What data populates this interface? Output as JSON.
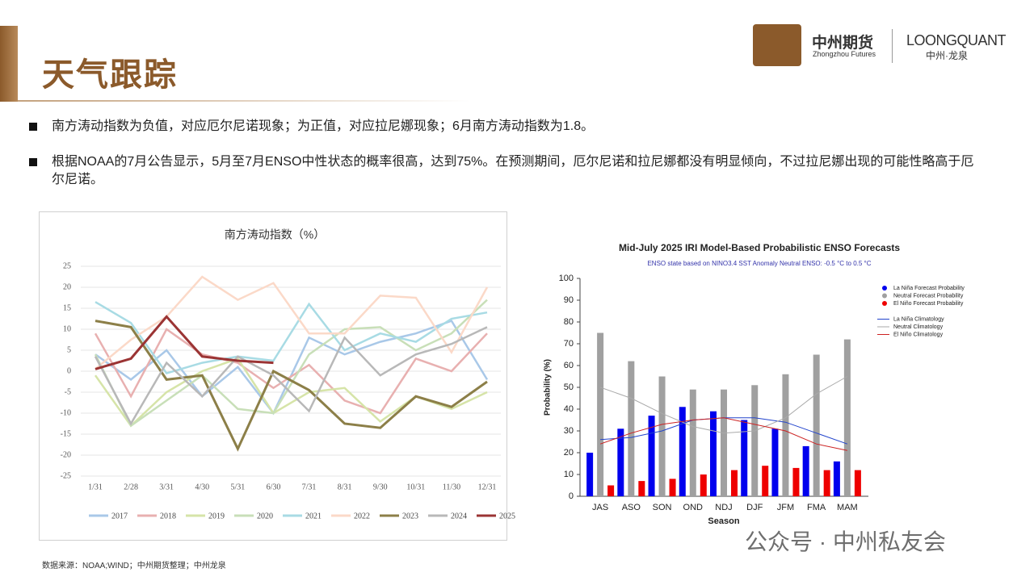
{
  "header": {
    "title": "天气跟踪",
    "logo_cn": "中州期货",
    "logo_en": "Zhongzhou Futures",
    "brand": "LOONGQUANT",
    "brand_cn": "中州·龙泉"
  },
  "bullets": [
    "南方涛动指数为负值，对应厄尔尼诺现象；为正值，对应拉尼娜现象；6月南方涛动指数为1.8。",
    "根据NOAA的7月公告显示，5月至7月ENSO中性状态的概率很高，达到75%。在预测期间，厄尔尼诺和拉尼娜都没有明显倾向，不过拉尼娜出现的可能性略高于厄尔尼诺。"
  ],
  "source": "数据来源：NOAA;WIND；中州期货整理；中州龙泉",
  "watermark": "公众号 · 中州私友会",
  "chart_data": [
    {
      "type": "line",
      "title": "南方涛动指数（%）",
      "categories": [
        "1/31",
        "2/28",
        "3/31",
        "4/30",
        "5/31",
        "6/30",
        "7/31",
        "8/31",
        "9/30",
        "10/31",
        "11/30",
        "12/31"
      ],
      "ylim": [
        -25,
        25
      ],
      "yticks": [
        -25,
        -20,
        -15,
        -10,
        -5,
        0,
        5,
        10,
        15,
        20,
        25
      ],
      "grid": true,
      "legend": "bottom",
      "series": [
        {
          "name": "2017",
          "color": "#a9c8e8",
          "values": [
            4,
            -2,
            5,
            -6,
            1,
            -10,
            8,
            4,
            7,
            9,
            12,
            -2
          ]
        },
        {
          "name": "2018",
          "color": "#e8b0b0",
          "values": [
            9,
            -6,
            10,
            4,
            2,
            -4,
            1.5,
            -7,
            -10,
            3,
            0,
            9
          ]
        },
        {
          "name": "2019",
          "color": "#d6e4a8",
          "values": [
            -1,
            -13,
            -5,
            0,
            3,
            -10,
            -5,
            -4,
            -12,
            -6,
            -9,
            -5
          ]
        },
        {
          "name": "2020",
          "color": "#c8dfb8",
          "values": [
            4,
            -13,
            -7,
            -1,
            -9,
            -10,
            4,
            10,
            10.5,
            5,
            9,
            17
          ]
        },
        {
          "name": "2021",
          "color": "#a8dbe4",
          "values": [
            16.5,
            11.5,
            -0.5,
            2,
            3.5,
            2.5,
            16,
            5,
            9,
            7,
            12.5,
            14
          ]
        },
        {
          "name": "2022",
          "color": "#fbd9c8",
          "values": [
            0.5,
            7.5,
            13,
            22.5,
            17,
            21,
            9,
            9,
            18,
            17.5,
            4.5,
            20
          ]
        },
        {
          "name": "2023",
          "color": "#8c7f48",
          "values": [
            12,
            10.5,
            -2,
            -1,
            -18.5,
            0,
            -4.5,
            -12.5,
            -13.5,
            -6,
            -8.5,
            -2.5
          ]
        },
        {
          "name": "2024",
          "color": "#b8b8b8",
          "values": [
            3.5,
            -12.5,
            2,
            -6,
            3.5,
            -1,
            -9.5,
            8,
            -1,
            4,
            6.5,
            10.5
          ]
        },
        {
          "name": "2025",
          "color": "#9b3434",
          "values": [
            0.5,
            3,
            13,
            3.5,
            2.5,
            2,
            null,
            null,
            null,
            null,
            null,
            null
          ]
        }
      ]
    },
    {
      "type": "bar",
      "title": "Mid-July 2025 IRI Model-Based Probabilistic ENSO Forecasts",
      "subtitle": "ENSO state based on NINO3.4 SST Anomaly Neutral ENSO: -0.5 °C to 0.5 °C",
      "x_label": "Season",
      "y_label": "Probability (%)",
      "categories": [
        "JAS",
        "ASO",
        "SON",
        "OND",
        "NDJ",
        "DJF",
        "JFM",
        "FMA",
        "MAM"
      ],
      "ylim": [
        0,
        100
      ],
      "yticks": [
        0,
        10,
        20,
        30,
        40,
        50,
        60,
        70,
        80,
        90,
        100
      ],
      "legend": "right",
      "series": [
        {
          "name": "La Niña Forecast Probability",
          "color": "#0000ee",
          "type": "bar",
          "values": [
            20,
            31,
            37,
            41,
            39,
            35,
            31,
            23,
            16
          ]
        },
        {
          "name": "Neutral Forecast Probability",
          "color": "#a0a0a0",
          "type": "bar",
          "values": [
            75,
            62,
            55,
            49,
            49,
            51,
            56,
            65,
            72
          ]
        },
        {
          "name": "El Niño Forecast Probability",
          "color": "#ee0000",
          "type": "bar",
          "values": [
            5,
            7,
            8,
            10,
            12,
            14,
            13,
            12,
            12
          ]
        },
        {
          "name": "La Niña Climatology",
          "color": "#2244cc",
          "type": "line",
          "values": [
            26,
            27,
            30,
            35,
            36,
            36,
            34,
            29,
            24
          ]
        },
        {
          "name": "Neutral Climatology",
          "color": "#aaaaaa",
          "type": "line",
          "values": [
            50,
            45,
            38,
            32,
            29,
            30,
            36,
            47,
            55
          ]
        },
        {
          "name": "El Niño Climatology",
          "color": "#cc2222",
          "type": "line",
          "values": [
            24,
            29,
            33,
            35,
            36,
            33,
            30,
            24,
            21
          ]
        }
      ]
    }
  ]
}
